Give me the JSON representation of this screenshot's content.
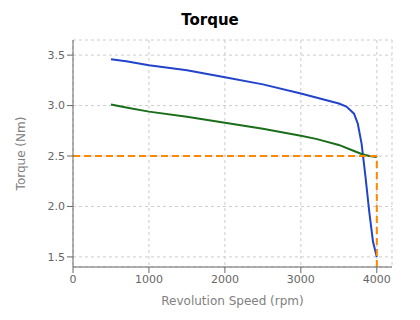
{
  "chart_data": {
    "type": "line",
    "title": "Torque",
    "x_label": "Revolution Speed (rpm)",
    "y_label": "Torque (Nm)",
    "xlim": [
      0,
      4200
    ],
    "ylim": [
      1.4,
      3.65
    ],
    "xticks": [
      0,
      1000,
      2000,
      3000,
      4000
    ],
    "yticks": [
      1.5,
      {
        "value": 2.0,
        "label": "2.0"
      },
      2.5,
      {
        "value": 3.0,
        "label": "3.0"
      },
      3.5
    ],
    "grid": true,
    "series": [
      {
        "color": "#2244cc",
        "x": [
          500,
          700,
          1000,
          1500,
          2000,
          2500,
          3000,
          3200,
          3500,
          3600,
          3700,
          3750,
          3800,
          3850,
          3900,
          3950,
          4000
        ],
        "values": [
          3.46,
          3.44,
          3.4,
          3.35,
          3.28,
          3.21,
          3.12,
          3.08,
          3.02,
          2.99,
          2.92,
          2.82,
          2.62,
          2.3,
          1.95,
          1.65,
          1.5
        ]
      },
      {
        "color": "#1a6e1a",
        "x": [
          500,
          700,
          1000,
          1500,
          2000,
          2500,
          3000,
          3200,
          3500,
          3700,
          3800,
          3900,
          4000
        ],
        "values": [
          3.01,
          2.98,
          2.94,
          2.89,
          2.83,
          2.77,
          2.7,
          2.67,
          2.61,
          2.55,
          2.52,
          2.5,
          2.49
        ]
      },
      {
        "color": "#ff8800",
        "line_style": "dashed",
        "x": [
          0,
          4000
        ],
        "values": [
          2.5,
          2.5
        ]
      },
      {
        "color": "#ff8800",
        "line_style": "dashed",
        "x": [
          4000,
          4000
        ],
        "values": [
          1.4,
          2.5
        ]
      }
    ]
  }
}
